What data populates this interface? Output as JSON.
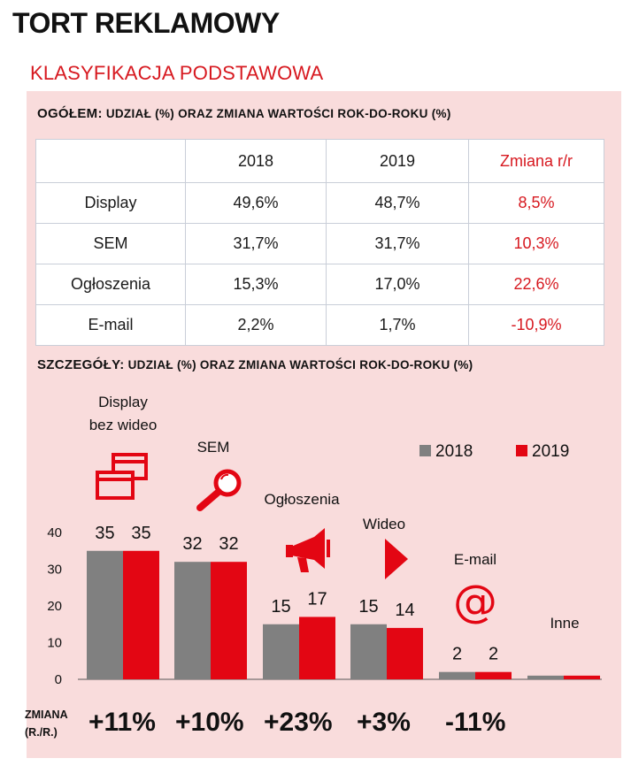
{
  "title": "TORT REKLAMOWY",
  "subtitle": "KLASYFIKACJA PODSTAWOWA",
  "overall_heading_bold": "OGÓŁEM:",
  "overall_heading_rest": "UDZIAŁ (%) ORAZ ZMIANA WARTOŚCI ROK-DO-ROKU  (%)",
  "table": {
    "headers": [
      "",
      "2018",
      "2019",
      "Zmiana r/r"
    ],
    "rows": [
      [
        "Display",
        "49,6%",
        "48,7%",
        "8,5%"
      ],
      [
        "SEM",
        "31,7%",
        "31,7%",
        "10,3%"
      ],
      [
        "Ogłoszenia",
        "15,3%",
        "17,0%",
        "22,6%"
      ],
      [
        "E-mail",
        "2,2%",
        "1,7%",
        "-10,9%"
      ]
    ]
  },
  "details_heading_bold": "SZCZEGÓŁY:",
  "details_heading_rest": "UDZIAŁ (%) ORAZ ZMIANA WARTOŚCI ROK-DO-ROKU (%)",
  "zmiana_label_1": "ZMIANA",
  "zmiana_label_2": "(R./R.)",
  "changes": [
    "+11%",
    "+10%",
    "+23%",
    "+3%",
    "-11%"
  ],
  "icons": [
    "windows-icon",
    "magnifier-icon",
    "megaphone-icon",
    "play-icon",
    "at-sign-icon"
  ],
  "colors": {
    "accent": "#d71920",
    "series_2018": "#808080",
    "series_2019": "#e30613",
    "panel": "#f9dcdc"
  },
  "chart_data": {
    "type": "bar",
    "categories": [
      "Display bez wideo",
      "SEM",
      "Ogłoszenia",
      "Wideo",
      "E-mail",
      "Inne"
    ],
    "category_lines": [
      [
        "Display",
        "bez wideo"
      ],
      [
        "SEM"
      ],
      [
        "Ogłoszenia"
      ],
      [
        "Wideo"
      ],
      [
        "E-mail"
      ],
      [
        "Inne"
      ]
    ],
    "series": [
      {
        "name": "2018",
        "values": [
          35,
          32,
          15,
          15,
          2,
          1
        ]
      },
      {
        "name": "2019",
        "values": [
          35,
          32,
          17,
          14,
          2,
          1
        ]
      }
    ],
    "data_labels": [
      [
        "35",
        "35"
      ],
      [
        "32",
        "32"
      ],
      [
        "15",
        "17"
      ],
      [
        "15",
        "14"
      ],
      [
        "2",
        "2"
      ],
      [
        "",
        ""
      ]
    ],
    "ylim": [
      0,
      40
    ],
    "yticks": [
      0,
      10,
      20,
      30,
      40
    ],
    "legend": "top-right",
    "grid": false
  }
}
